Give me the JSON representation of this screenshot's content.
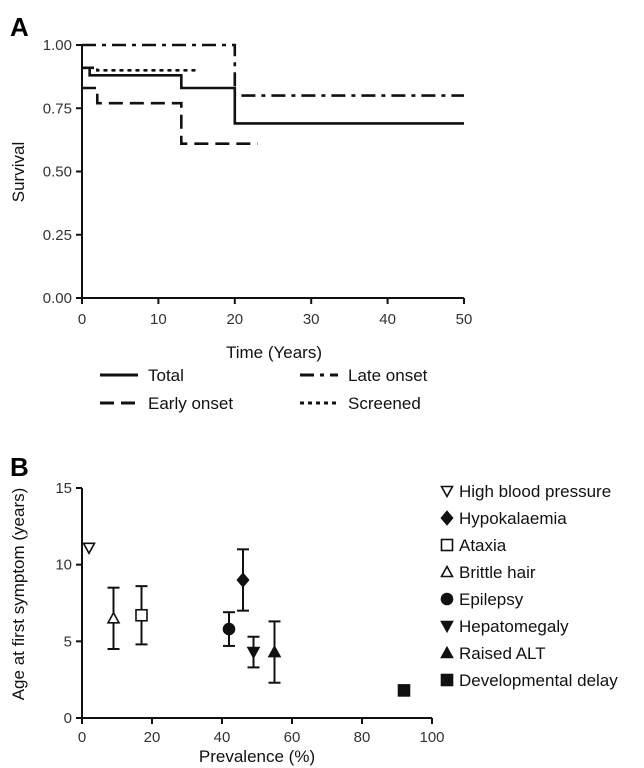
{
  "chart_data": [
    {
      "panel": "A",
      "type": "line",
      "step": true,
      "xlabel": "Time (Years)",
      "ylabel": "Survival",
      "xlim": [
        0,
        50
      ],
      "ylim": [
        0,
        1
      ],
      "xticks": [
        "0",
        "10",
        "20",
        "30",
        "40",
        "50"
      ],
      "yticks": [
        "0.00",
        "0.25",
        "0.50",
        "0.75",
        "1.00"
      ],
      "grid": false,
      "legend_position": "bottom",
      "series": [
        {
          "name": "Total",
          "style": "solid",
          "x": [
            0,
            1,
            13,
            20,
            50
          ],
          "y": [
            0.91,
            0.88,
            0.83,
            0.69,
            0.69
          ]
        },
        {
          "name": "Early onset",
          "style": "dashed",
          "x": [
            0,
            2,
            13,
            23
          ],
          "y": [
            0.83,
            0.77,
            0.61,
            0.61
          ]
        },
        {
          "name": "Late onset",
          "style": "dashdot",
          "x": [
            0,
            20,
            50
          ],
          "y": [
            1.0,
            0.8,
            0.8
          ]
        },
        {
          "name": "Screened",
          "style": "dotted",
          "x": [
            0,
            2,
            15
          ],
          "y": [
            0.91,
            0.9,
            0.9
          ]
        }
      ]
    },
    {
      "panel": "B",
      "type": "scatter",
      "xlabel": "Prevalence (%)",
      "ylabel": "Age at first symptom (years)",
      "xlim": [
        0,
        100
      ],
      "ylim": [
        0,
        15
      ],
      "xticks": [
        "0",
        "20",
        "40",
        "60",
        "80",
        "100"
      ],
      "yticks": [
        "0",
        "5",
        "10",
        "15"
      ],
      "grid": false,
      "legend_position": "right",
      "series": [
        {
          "name": "High blood pressure",
          "marker": "triangle-down-open",
          "x": 2,
          "y": 11.1
        },
        {
          "name": "Hypokalaemia",
          "marker": "diamond",
          "x": 46,
          "y": 9.0,
          "err_low": 7.0,
          "err_high": 11.0
        },
        {
          "name": "Ataxia",
          "marker": "square-open",
          "x": 17,
          "y": 6.7,
          "err_low": 4.8,
          "err_high": 8.6
        },
        {
          "name": "Brittle hair",
          "marker": "triangle-up-open",
          "x": 9,
          "y": 6.5,
          "err_low": 4.5,
          "err_high": 8.5
        },
        {
          "name": "Epilepsy",
          "marker": "circle",
          "x": 42,
          "y": 5.8,
          "err_low": 4.7,
          "err_high": 6.9
        },
        {
          "name": "Hepatomegaly",
          "marker": "triangle-down",
          "x": 49,
          "y": 4.3,
          "err_low": 3.3,
          "err_high": 5.3
        },
        {
          "name": "Raised ALT",
          "marker": "triangle-up",
          "x": 55,
          "y": 4.3,
          "err_low": 2.3,
          "err_high": 6.3
        },
        {
          "name": "Developmental delay",
          "marker": "square",
          "x": 92,
          "y": 1.8,
          "err_low": 1.5,
          "err_high": 2.1
        }
      ]
    }
  ]
}
